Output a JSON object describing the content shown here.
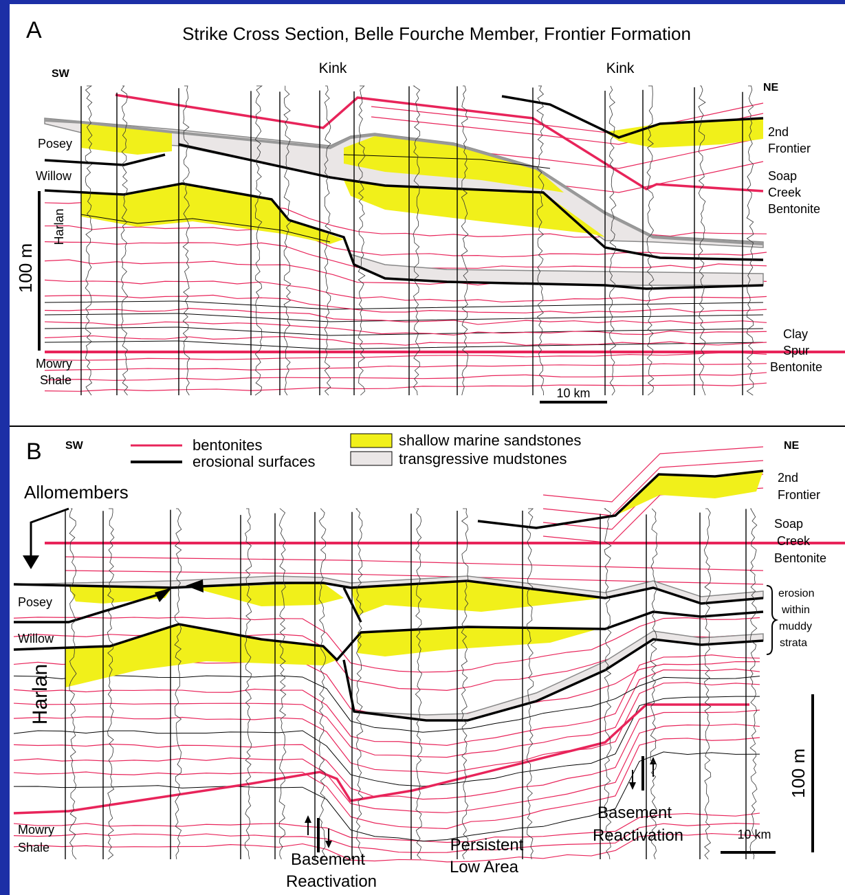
{
  "panel_a": {
    "letter": "A",
    "title": "Strike Cross Section, Belle Fourche Member, Frontier Formation",
    "sw": "SW",
    "ne": "NE",
    "kinks": [
      "Kink",
      "Kink"
    ],
    "units": {
      "posey": "Posey",
      "willow": "Willow",
      "harlan": "Harlan"
    },
    "scale_vertical": "100 m",
    "scale_horizontal": "10 km",
    "second_frontier": [
      "2nd",
      "Frontier"
    ],
    "soap_creek": [
      "Soap",
      "Creek",
      "Bentonite"
    ],
    "clay_spur": [
      "Clay",
      "Spur",
      "Bentonite"
    ],
    "mowry": [
      "Mowry",
      "Shale"
    ]
  },
  "panel_b": {
    "letter": "B",
    "sw": "SW",
    "ne": "NE",
    "legend": {
      "bentonites": "bentonites",
      "erosional": "erosional surfaces",
      "sandstones": "shallow marine sandstones",
      "mudstones": "transgressive mudstones"
    },
    "allomembers": "Allomembers",
    "units": {
      "posey": "Posey",
      "willow": "Willow",
      "harlan": "Harlan"
    },
    "second_frontier": [
      "2nd",
      "Frontier"
    ],
    "soap_creek": [
      "Soap",
      "Creek",
      "Bentonite"
    ],
    "erosion_note": [
      "erosion",
      "within",
      "muddy",
      "strata"
    ],
    "scale_vertical": "100 m",
    "scale_horizontal": "10 km",
    "basement_left": [
      "Basement",
      "Reactivation"
    ],
    "basement_right": [
      "Basement",
      "Reactivation"
    ],
    "low_area": [
      "Persistent",
      "Low Area"
    ],
    "mowry": [
      "Mowry",
      "Shale"
    ]
  }
}
